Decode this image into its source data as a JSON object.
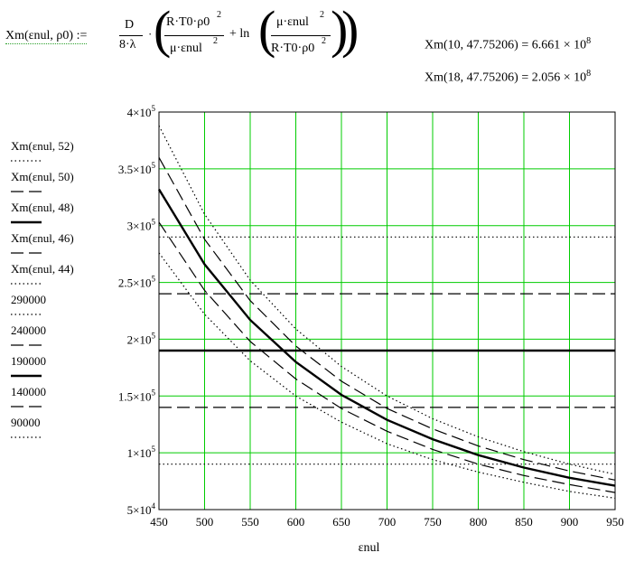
{
  "formula": {
    "lhs": "Xm(εnul, ρ0) :=",
    "coef_num": "D",
    "coef_den": "8·λ",
    "t1_num": "R·T0·ρ0",
    "t1_num_exp": "2",
    "t1_den": "μ·εnul",
    "t1_den_exp": "2",
    "plus_ln": "+ ln",
    "t2_num": "μ·εnul",
    "t2_num_exp": "2",
    "t2_den": "R·T0·ρ0",
    "t2_den_exp": "2"
  },
  "results": [
    {
      "expr": "Xm(10, 47.75206) = 6.661 × 10",
      "exp": "8"
    },
    {
      "expr": "Xm(18, 47.75206) = 2.056 × 10",
      "exp": "8"
    }
  ],
  "legend": [
    {
      "label": "Xm(εnul, 52)",
      "style": "dotted"
    },
    {
      "label": "Xm(εnul, 50)",
      "style": "dashed"
    },
    {
      "label": "Xm(εnul, 48)",
      "style": "solid-bold"
    },
    {
      "label": "Xm(εnul, 46)",
      "style": "dashed"
    },
    {
      "label": "Xm(εnul, 44)",
      "style": "dotted"
    },
    {
      "label": "290000",
      "style": "dotted"
    },
    {
      "label": "240000",
      "style": "dashed"
    },
    {
      "label": "190000",
      "style": "solid-bold"
    },
    {
      "label": "140000",
      "style": "dashed"
    },
    {
      "label": "90000",
      "style": "dotted"
    }
  ],
  "chart_data": {
    "type": "line",
    "xlabel": "εnul",
    "ylabel": "",
    "xlim": [
      450,
      950
    ],
    "ylim": [
      50000,
      400000
    ],
    "x_ticks": [
      450,
      500,
      550,
      600,
      650,
      700,
      750,
      800,
      850,
      900,
      950
    ],
    "y_ticks": [
      {
        "mant": "5",
        "exp": "4",
        "value": 50000
      },
      {
        "mant": "1",
        "exp": "5",
        "value": 100000
      },
      {
        "mant": "1.5",
        "exp": "5",
        "value": 150000
      },
      {
        "mant": "2",
        "exp": "5",
        "value": 200000
      },
      {
        "mant": "2.5",
        "exp": "5",
        "value": 250000
      },
      {
        "mant": "3",
        "exp": "5",
        "value": 300000
      },
      {
        "mant": "3.5",
        "exp": "5",
        "value": 350000
      },
      {
        "mant": "4",
        "exp": "5",
        "value": 400000
      }
    ],
    "grid": true,
    "grid_color": "#00cc00",
    "x": [
      450,
      500,
      550,
      600,
      650,
      700,
      750,
      800,
      850,
      900,
      950
    ],
    "series": [
      {
        "name": "Xm(εnul, 52)",
        "style": "dotted",
        "values": [
          388000,
          310000,
          252000,
          209000,
          176000,
          150000,
          130000,
          114000,
          101000,
          90000,
          81000
        ]
      },
      {
        "name": "Xm(εnul, 50)",
        "style": "dashed",
        "values": [
          360000,
          288000,
          234000,
          194000,
          163000,
          139000,
          121000,
          106000,
          94000,
          84000,
          76000
        ]
      },
      {
        "name": "Xm(εnul, 48)",
        "style": "solid-bold",
        "values": [
          332000,
          266000,
          217000,
          180000,
          151000,
          129000,
          112000,
          98000,
          87000,
          78000,
          71000
        ]
      },
      {
        "name": "Xm(εnul, 46)",
        "style": "dashed",
        "values": [
          303000,
          243000,
          198000,
          165000,
          139000,
          119000,
          103000,
          90000,
          80000,
          72000,
          65000
        ]
      },
      {
        "name": "Xm(εnul, 44)",
        "style": "dotted",
        "values": [
          276000,
          222000,
          181000,
          150000,
          127000,
          108000,
          94000,
          83000,
          74000,
          66000,
          60000
        ]
      },
      {
        "name": "290000",
        "style": "dotted",
        "constant": 290000
      },
      {
        "name": "240000",
        "style": "dashed",
        "constant": 240000
      },
      {
        "name": "190000",
        "style": "solid-bold",
        "constant": 190000
      },
      {
        "name": "140000",
        "style": "dashed",
        "constant": 140000
      },
      {
        "name": "90000",
        "style": "dotted",
        "constant": 90000
      }
    ]
  }
}
